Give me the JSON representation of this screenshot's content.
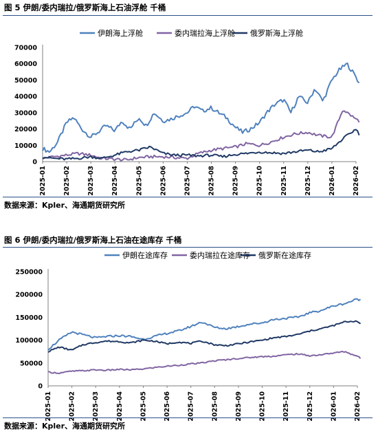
{
  "figures": [
    {
      "title": "图 5 伊朗/委内瑞拉/俄罗斯海上石油浮舱 千桶",
      "source": "数据来源：Kpler、海通期货研究所"
    },
    {
      "title": "图 6 伊朗/委内瑞拉/俄罗斯海上石油在途库存 千桶",
      "source": "数据来源：Kpler、海通期货研究所"
    }
  ],
  "chart_data": [
    {
      "type": "line",
      "title": "图 5 伊朗/委内瑞拉/俄罗斯海上石油浮舱 千桶",
      "x_ticks": [
        "2025-01",
        "2025-02",
        "2025-03",
        "2025-04",
        "2025-05",
        "2025-06",
        "2025-07",
        "2025-08",
        "2025-09",
        "2025-10",
        "2025-11",
        "2025-12",
        "2026-01",
        "2026-02"
      ],
      "x_range": [
        "2025-01",
        "2026-02"
      ],
      "y_ticks": [
        0,
        10000,
        20000,
        30000,
        40000,
        50000,
        60000,
        70000
      ],
      "ylim": [
        0,
        70000
      ],
      "legend_position": "top",
      "series": [
        {
          "name": "伊朗海上浮舱",
          "color": "#4f81bd",
          "x": [
            "2025-01-01",
            "2025-01-10",
            "2025-01-20",
            "2025-02-01",
            "2025-02-10",
            "2025-02-20",
            "2025-03-01",
            "2025-03-10",
            "2025-03-20",
            "2025-04-01",
            "2025-04-10",
            "2025-04-20",
            "2025-05-01",
            "2025-05-10",
            "2025-05-20",
            "2025-06-01",
            "2025-06-10",
            "2025-06-20",
            "2025-07-01",
            "2025-07-10",
            "2025-07-20",
            "2025-08-01",
            "2025-08-10",
            "2025-08-20",
            "2025-09-01",
            "2025-09-10",
            "2025-09-20",
            "2025-10-01",
            "2025-10-10",
            "2025-10-20",
            "2025-11-01",
            "2025-11-10",
            "2025-11-20",
            "2025-12-01",
            "2025-12-10",
            "2025-12-20",
            "2026-01-01",
            "2026-01-10",
            "2026-01-20",
            "2026-02-01",
            "2026-02-05"
          ],
          "values": [
            8000,
            6000,
            12000,
            24000,
            27000,
            20000,
            15000,
            18000,
            22000,
            19000,
            25000,
            20000,
            27000,
            22000,
            30000,
            25000,
            26000,
            28000,
            30000,
            34000,
            31000,
            33000,
            30000,
            27000,
            21000,
            18000,
            20000,
            24000,
            30000,
            35000,
            38000,
            30000,
            40000,
            36000,
            45000,
            37000,
            50000,
            56000,
            60000,
            52000,
            48000
          ]
        },
        {
          "name": "委内瑞拉海上浮舱",
          "color": "#8064a2",
          "x": [
            "2025-01-01",
            "2025-01-15",
            "2025-02-01",
            "2025-02-15",
            "2025-03-01",
            "2025-03-15",
            "2025-04-01",
            "2025-04-15",
            "2025-05-01",
            "2025-05-15",
            "2025-06-01",
            "2025-06-15",
            "2025-07-01",
            "2025-07-15",
            "2025-08-01",
            "2025-08-15",
            "2025-09-01",
            "2025-09-15",
            "2025-10-01",
            "2025-10-15",
            "2025-11-01",
            "2025-11-15",
            "2025-12-01",
            "2025-12-15",
            "2026-01-01",
            "2026-01-15",
            "2026-02-01",
            "2026-02-05"
          ],
          "values": [
            2000,
            3000,
            4000,
            5000,
            4000,
            2000,
            1500,
            1000,
            2500,
            3000,
            3000,
            2500,
            2000,
            5000,
            7000,
            8000,
            9000,
            11000,
            10000,
            12000,
            15000,
            17000,
            18000,
            16000,
            15000,
            32000,
            26000,
            25000
          ]
        },
        {
          "name": "俄罗斯海上浮舱",
          "color": "#1f3864",
          "x": [
            "2025-01-01",
            "2025-01-15",
            "2025-02-01",
            "2025-02-15",
            "2025-03-01",
            "2025-03-15",
            "2025-04-01",
            "2025-04-15",
            "2025-05-01",
            "2025-05-15",
            "2025-06-01",
            "2025-06-15",
            "2025-07-01",
            "2025-07-15",
            "2025-08-01",
            "2025-08-15",
            "2025-09-01",
            "2025-09-15",
            "2025-10-01",
            "2025-10-15",
            "2025-11-01",
            "2025-11-15",
            "2025-12-01",
            "2025-12-15",
            "2026-01-01",
            "2026-01-15",
            "2026-02-01",
            "2026-02-05"
          ],
          "values": [
            3000,
            2000,
            1500,
            2000,
            3000,
            2000,
            4000,
            6000,
            7000,
            9000,
            5000,
            4000,
            4000,
            3500,
            4000,
            3000,
            4500,
            5000,
            6000,
            5500,
            5000,
            6000,
            7000,
            6000,
            8000,
            14000,
            20000,
            17000
          ]
        }
      ]
    },
    {
      "type": "line",
      "title": "图 6 伊朗/委内瑞拉/俄罗斯海上石油在途库存 千桶",
      "x_ticks": [
        "2025-01",
        "2025-02",
        "2025-03",
        "2025-04",
        "2025-05",
        "2025-06",
        "2025-07",
        "2025-08",
        "2025-09",
        "2025-10",
        "2025-11",
        "2025-12",
        "2026-01",
        "2026-02"
      ],
      "x_range": [
        "2025-01",
        "2026-02"
      ],
      "y_ticks": [
        0,
        50000,
        100000,
        150000,
        200000,
        250000
      ],
      "ylim": [
        0,
        250000
      ],
      "legend_position": "top",
      "series": [
        {
          "name": "伊朗在途库存",
          "color": "#4f81bd",
          "x": [
            "2025-01-01",
            "2025-01-15",
            "2025-02-01",
            "2025-02-15",
            "2025-03-01",
            "2025-03-15",
            "2025-04-01",
            "2025-04-15",
            "2025-05-01",
            "2025-05-15",
            "2025-06-01",
            "2025-06-15",
            "2025-07-01",
            "2025-07-15",
            "2025-08-01",
            "2025-08-15",
            "2025-09-01",
            "2025-09-15",
            "2025-10-01",
            "2025-10-15",
            "2025-11-01",
            "2025-11-15",
            "2025-12-01",
            "2025-12-15",
            "2026-01-01",
            "2026-01-15",
            "2026-02-01",
            "2026-02-05"
          ],
          "values": [
            80000,
            100000,
            118000,
            112000,
            105000,
            108000,
            110000,
            108000,
            102000,
            108000,
            115000,
            120000,
            130000,
            140000,
            128000,
            125000,
            130000,
            135000,
            138000,
            145000,
            148000,
            150000,
            160000,
            165000,
            175000,
            180000,
            190000,
            188000
          ]
        },
        {
          "name": "委内瑞拉在途库存",
          "color": "#8064a2",
          "x": [
            "2025-01-01",
            "2025-01-15",
            "2025-02-01",
            "2025-02-15",
            "2025-03-01",
            "2025-03-15",
            "2025-04-01",
            "2025-04-15",
            "2025-05-01",
            "2025-05-15",
            "2025-06-01",
            "2025-06-15",
            "2025-07-01",
            "2025-07-15",
            "2025-08-01",
            "2025-08-15",
            "2025-09-01",
            "2025-09-15",
            "2025-10-01",
            "2025-10-15",
            "2025-11-01",
            "2025-11-15",
            "2025-12-01",
            "2025-12-15",
            "2026-01-01",
            "2026-01-15",
            "2026-02-01",
            "2026-02-05"
          ],
          "values": [
            30000,
            28000,
            32000,
            33000,
            35000,
            34000,
            36000,
            35000,
            37000,
            40000,
            43000,
            45000,
            48000,
            50000,
            55000,
            57000,
            60000,
            62000,
            64000,
            65000,
            68000,
            70000,
            66000,
            68000,
            72000,
            75000,
            65000,
            60000
          ]
        },
        {
          "name": "俄罗斯在途库存",
          "color": "#1f3864",
          "x": [
            "2025-01-01",
            "2025-01-15",
            "2025-02-01",
            "2025-02-15",
            "2025-03-01",
            "2025-03-15",
            "2025-04-01",
            "2025-04-15",
            "2025-05-01",
            "2025-05-15",
            "2025-06-01",
            "2025-06-15",
            "2025-07-01",
            "2025-07-15",
            "2025-08-01",
            "2025-08-15",
            "2025-09-01",
            "2025-09-15",
            "2025-10-01",
            "2025-10-15",
            "2025-11-01",
            "2025-11-15",
            "2025-12-01",
            "2025-12-15",
            "2026-01-01",
            "2026-01-15",
            "2026-02-01",
            "2026-02-05"
          ],
          "values": [
            75000,
            85000,
            78000,
            90000,
            95000,
            98000,
            97000,
            94000,
            100000,
            98000,
            92000,
            96000,
            93000,
            98000,
            90000,
            88000,
            92000,
            96000,
            100000,
            105000,
            108000,
            112000,
            120000,
            125000,
            132000,
            140000,
            142000,
            135000
          ]
        }
      ]
    }
  ]
}
